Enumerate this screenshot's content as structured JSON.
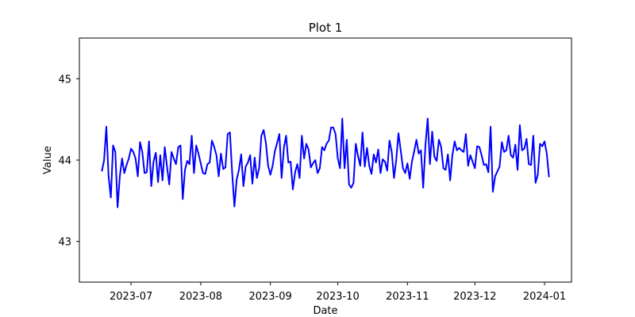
{
  "chart_data": {
    "type": "line",
    "title": "Plot 1",
    "xlabel": "Date",
    "ylabel": "Value",
    "xlim": [
      "2023-06-08",
      "2024-01-13"
    ],
    "ylim": [
      42.5,
      45.5
    ],
    "grid": false,
    "legend": "none",
    "x_ticks": [
      "2023-07",
      "2023-08",
      "2023-09",
      "2023-10",
      "2023-11",
      "2023-12",
      "2024-01"
    ],
    "y_ticks": [
      43,
      44,
      45
    ],
    "series": [
      {
        "color": "#0000ff",
        "x": [
          "2023-06-18",
          "2023-06-19",
          "2023-06-20",
          "2023-06-21",
          "2023-06-22",
          "2023-06-23",
          "2023-06-24",
          "2023-06-25",
          "2023-06-26",
          "2023-06-27",
          "2023-06-28",
          "2023-06-29",
          "2023-06-30",
          "2023-07-01",
          "2023-07-02",
          "2023-07-03",
          "2023-07-04",
          "2023-07-05",
          "2023-07-06",
          "2023-07-07",
          "2023-07-08",
          "2023-07-09",
          "2023-07-10",
          "2023-07-11",
          "2023-07-12",
          "2023-07-13",
          "2023-07-14",
          "2023-07-15",
          "2023-07-16",
          "2023-07-17",
          "2023-07-18",
          "2023-07-19",
          "2023-07-20",
          "2023-07-21",
          "2023-07-22",
          "2023-07-23",
          "2023-07-24",
          "2023-07-25",
          "2023-07-26",
          "2023-07-27",
          "2023-07-28",
          "2023-07-29",
          "2023-07-30",
          "2023-07-31",
          "2023-08-01",
          "2023-08-02",
          "2023-08-03",
          "2023-08-04",
          "2023-08-05",
          "2023-08-06",
          "2023-08-07",
          "2023-08-08",
          "2023-08-09",
          "2023-08-10",
          "2023-08-11",
          "2023-08-12",
          "2023-08-13",
          "2023-08-14",
          "2023-08-15",
          "2023-08-16",
          "2023-08-17",
          "2023-08-18",
          "2023-08-19",
          "2023-08-20",
          "2023-08-21",
          "2023-08-22",
          "2023-08-23",
          "2023-08-24",
          "2023-08-25",
          "2023-08-26",
          "2023-08-27",
          "2023-08-28",
          "2023-08-29",
          "2023-08-30",
          "2023-08-31",
          "2023-09-01",
          "2023-09-02",
          "2023-09-03",
          "2023-09-04",
          "2023-09-05",
          "2023-09-06",
          "2023-09-07",
          "2023-09-08",
          "2023-09-09",
          "2023-09-10",
          "2023-09-11",
          "2023-09-12",
          "2023-09-13",
          "2023-09-14",
          "2023-09-15",
          "2023-09-16",
          "2023-09-17",
          "2023-09-18",
          "2023-09-19",
          "2023-09-20",
          "2023-09-21",
          "2023-09-22",
          "2023-09-23",
          "2023-09-24",
          "2023-09-25",
          "2023-09-26",
          "2023-09-27",
          "2023-09-28",
          "2023-09-29",
          "2023-09-30",
          "2023-10-01",
          "2023-10-02",
          "2023-10-03",
          "2023-10-04",
          "2023-10-05",
          "2023-10-06",
          "2023-10-07",
          "2023-10-08",
          "2023-10-09",
          "2023-10-10",
          "2023-10-11",
          "2023-10-12",
          "2023-10-13",
          "2023-10-14",
          "2023-10-15",
          "2023-10-16",
          "2023-10-17",
          "2023-10-18",
          "2023-10-19",
          "2023-10-20",
          "2023-10-21",
          "2023-10-22",
          "2023-10-23",
          "2023-10-24",
          "2023-10-25",
          "2023-10-26",
          "2023-10-27",
          "2023-10-28",
          "2023-10-29",
          "2023-10-30",
          "2023-10-31",
          "2023-11-01",
          "2023-11-02",
          "2023-11-03",
          "2023-11-04",
          "2023-11-05",
          "2023-11-06",
          "2023-11-07",
          "2023-11-08",
          "2023-11-09",
          "2023-11-10",
          "2023-11-11",
          "2023-11-12",
          "2023-11-13",
          "2023-11-14",
          "2023-11-15",
          "2023-11-16",
          "2023-11-17",
          "2023-11-18",
          "2023-11-19",
          "2023-11-20",
          "2023-11-21",
          "2023-11-22",
          "2023-11-23",
          "2023-11-24",
          "2023-11-25",
          "2023-11-26",
          "2023-11-27",
          "2023-11-28",
          "2023-11-29",
          "2023-11-30",
          "2023-12-01",
          "2023-12-02",
          "2023-12-03",
          "2023-12-04",
          "2023-12-05",
          "2023-12-06",
          "2023-12-07",
          "2023-12-08",
          "2023-12-09",
          "2023-12-10",
          "2023-12-11",
          "2023-12-12",
          "2023-12-13",
          "2023-12-14",
          "2023-12-15",
          "2023-12-16",
          "2023-12-17",
          "2023-12-18",
          "2023-12-19",
          "2023-12-20",
          "2023-12-21",
          "2023-12-22",
          "2023-12-23",
          "2023-12-24",
          "2023-12-25",
          "2023-12-26",
          "2023-12-27",
          "2023-12-28",
          "2023-12-29",
          "2023-12-30",
          "2023-12-31",
          "2024-01-01",
          "2024-01-02",
          "2024-01-03"
        ],
        "values": [
          43.86,
          44.0,
          44.41,
          43.8,
          43.54,
          44.18,
          44.1,
          43.42,
          43.8,
          44.02,
          43.84,
          43.94,
          44.02,
          44.14,
          44.1,
          44.02,
          43.8,
          44.22,
          44.1,
          43.84,
          43.85,
          44.23,
          43.68,
          43.98,
          44.09,
          43.73,
          44.06,
          43.75,
          44.16,
          43.92,
          43.7,
          44.1,
          44.02,
          43.95,
          44.16,
          44.18,
          43.52,
          43.88,
          43.99,
          43.95,
          44.3,
          43.84,
          44.18,
          44.08,
          43.96,
          43.84,
          43.83,
          43.95,
          43.97,
          44.24,
          44.16,
          44.06,
          43.8,
          44.08,
          43.89,
          43.91,
          44.32,
          44.34,
          43.84,
          43.43,
          43.76,
          43.88,
          44.07,
          43.68,
          43.92,
          43.97,
          44.06,
          43.71,
          44.03,
          43.78,
          43.9,
          44.3,
          44.37,
          44.21,
          43.93,
          43.82,
          43.93,
          44.11,
          44.21,
          44.32,
          43.78,
          44.15,
          44.3,
          43.97,
          43.98,
          43.64,
          43.85,
          43.95,
          43.78,
          44.3,
          44.02,
          44.2,
          44.13,
          43.91,
          43.96,
          44.0,
          43.84,
          43.9,
          44.16,
          44.12,
          44.2,
          44.24,
          44.4,
          44.4,
          44.32,
          44.02,
          43.9,
          44.51,
          43.9,
          44.25,
          43.7,
          43.66,
          43.72,
          44.2,
          44.05,
          43.93,
          44.34,
          43.92,
          44.15,
          43.93,
          43.83,
          44.07,
          43.97,
          44.13,
          43.84,
          44.01,
          43.98,
          43.87,
          44.24,
          44.1,
          43.78,
          44.0,
          44.33,
          44.12,
          43.9,
          43.84,
          43.96,
          43.77,
          43.98,
          44.11,
          44.25,
          44.08,
          44.12,
          43.66,
          44.18,
          44.51,
          43.95,
          44.35,
          44.04,
          43.99,
          44.25,
          44.16,
          43.9,
          43.88,
          44.07,
          43.75,
          44.06,
          44.23,
          44.12,
          44.15,
          44.12,
          44.1,
          44.32,
          43.93,
          44.06,
          43.98,
          43.9,
          44.17,
          44.16,
          44.06,
          43.94,
          43.95,
          43.85,
          44.41,
          43.61,
          43.8,
          43.86,
          43.92,
          44.22,
          44.1,
          44.12,
          44.3,
          44.06,
          44.03,
          44.19,
          43.88,
          44.43,
          44.12,
          44.14,
          44.26,
          43.95,
          43.94,
          44.3,
          43.72,
          43.82,
          44.2,
          44.17,
          44.23,
          44.08,
          43.79
        ]
      }
    ]
  }
}
